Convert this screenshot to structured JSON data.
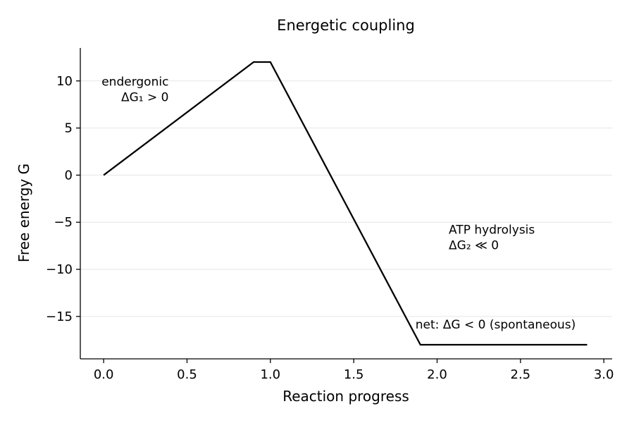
{
  "chart_data": {
    "type": "line",
    "title": "Energetic coupling",
    "xlabel": "Reaction progress",
    "ylabel": "Free energy G",
    "xlim": [
      -0.14,
      3.05
    ],
    "ylim": [
      -19.5,
      13.5
    ],
    "xticks": [
      0.0,
      0.5,
      1.0,
      1.5,
      2.0,
      2.5,
      3.0
    ],
    "xtick_labels": [
      "0.0",
      "0.5",
      "1.0",
      "1.5",
      "2.0",
      "2.5",
      "3.0"
    ],
    "yticks": [
      10,
      5,
      0,
      -5,
      -10,
      -15
    ],
    "ytick_labels": [
      "10",
      "5",
      "0",
      "−5",
      "−10",
      "−15"
    ],
    "grid": "horizontal",
    "series": [
      {
        "color": "#000000",
        "x": [
          0.0,
          0.9,
          1.0,
          1.9,
          2.9
        ],
        "y": [
          0,
          12,
          12,
          -18,
          -18
        ]
      }
    ],
    "annotations": [
      {
        "lines": [
          "endergonic",
          "ΔG₁ > 0"
        ],
        "x": 0.39,
        "y": 9.5,
        "align": "end"
      },
      {
        "lines": [
          "ATP hydrolysis",
          "ΔG₂ ≪ 0"
        ],
        "x": 2.07,
        "y": -6.2,
        "align": "start"
      },
      {
        "lines": [
          "net: ΔG < 0 (spontaneous)"
        ],
        "x": 1.87,
        "y": -16.3,
        "align": "start"
      }
    ]
  }
}
